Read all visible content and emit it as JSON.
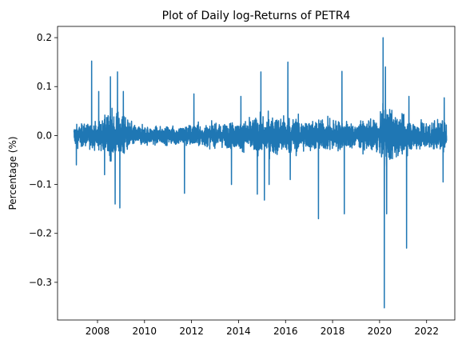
{
  "chart_data": {
    "type": "line",
    "title": "Plot of Daily log-Returns of PETR4",
    "xlabel": "",
    "ylabel": "Percentage (%)",
    "xlim": [
      2006.3,
      2023.2
    ],
    "ylim": [
      -0.377,
      0.223
    ],
    "x_ticks": [
      2008,
      2010,
      2012,
      2014,
      2016,
      2018,
      2020,
      2022
    ],
    "x_tick_labels": [
      "2008",
      "2010",
      "2012",
      "2014",
      "2016",
      "2018",
      "2020",
      "2022"
    ],
    "y_ticks": [
      -0.3,
      -0.2,
      -0.1,
      0.0,
      0.1,
      0.2
    ],
    "y_tick_labels": [
      "−0.3",
      "−0.2",
      "−0.1",
      "0.0",
      "0.1",
      "0.2"
    ],
    "grid": false,
    "line_color": "#1f77b4",
    "series": [
      {
        "x_start": 2007.0,
        "x_end": 2022.85,
        "baseline_volatility": [
          [
            2007.0,
            0.018
          ],
          [
            2007.5,
            0.02
          ],
          [
            2008.0,
            0.022
          ],
          [
            2008.6,
            0.04
          ],
          [
            2009.0,
            0.038
          ],
          [
            2009.5,
            0.02
          ],
          [
            2010.0,
            0.016
          ],
          [
            2011.0,
            0.015
          ],
          [
            2012.0,
            0.02
          ],
          [
            2013.0,
            0.019
          ],
          [
            2014.0,
            0.024
          ],
          [
            2015.0,
            0.032
          ],
          [
            2016.0,
            0.034
          ],
          [
            2017.0,
            0.026
          ],
          [
            2018.0,
            0.028
          ],
          [
            2019.0,
            0.021
          ],
          [
            2020.0,
            0.028
          ],
          [
            2020.3,
            0.055
          ],
          [
            2020.8,
            0.032
          ],
          [
            2021.5,
            0.026
          ],
          [
            2022.85,
            0.024
          ]
        ],
        "extremes": [
          [
            2007.1,
            -0.06
          ],
          [
            2007.75,
            0.152
          ],
          [
            2008.05,
            0.09
          ],
          [
            2008.3,
            -0.08
          ],
          [
            2008.55,
            0.12
          ],
          [
            2008.75,
            -0.14
          ],
          [
            2008.85,
            0.13
          ],
          [
            2008.95,
            -0.148
          ],
          [
            2009.1,
            0.09
          ],
          [
            2011.7,
            -0.118
          ],
          [
            2012.1,
            0.085
          ],
          [
            2013.7,
            -0.1
          ],
          [
            2014.1,
            0.08
          ],
          [
            2014.8,
            -0.12
          ],
          [
            2014.95,
            0.13
          ],
          [
            2015.1,
            -0.132
          ],
          [
            2015.3,
            -0.1
          ],
          [
            2016.1,
            0.15
          ],
          [
            2016.2,
            -0.09
          ],
          [
            2017.4,
            -0.17
          ],
          [
            2018.4,
            0.131
          ],
          [
            2018.5,
            -0.16
          ],
          [
            2020.15,
            0.2
          ],
          [
            2020.2,
            -0.352
          ],
          [
            2020.25,
            0.14
          ],
          [
            2020.3,
            -0.16
          ],
          [
            2021.15,
            -0.23
          ],
          [
            2021.25,
            0.08
          ],
          [
            2022.7,
            -0.095
          ],
          [
            2022.75,
            0.077
          ]
        ]
      }
    ]
  }
}
